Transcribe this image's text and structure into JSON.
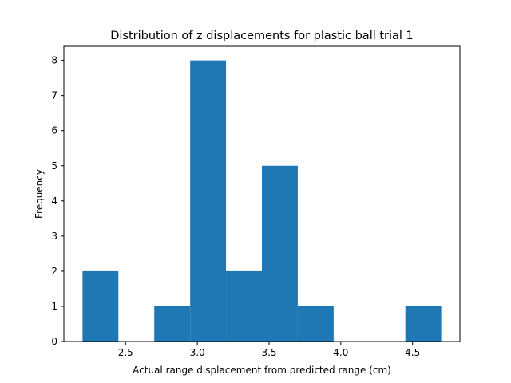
{
  "chart_data": {
    "type": "bar",
    "title": "Distribution of z displacements for plastic ball trial 1",
    "xlabel": "Actual range displacement from predicted range (cm)",
    "ylabel": "Frequency",
    "bins": [
      {
        "start": 2.2,
        "end": 2.45,
        "count": 2
      },
      {
        "start": 2.45,
        "end": 2.7,
        "count": 0
      },
      {
        "start": 2.7,
        "end": 2.95,
        "count": 1
      },
      {
        "start": 2.95,
        "end": 3.2,
        "count": 8
      },
      {
        "start": 3.2,
        "end": 3.45,
        "count": 2
      },
      {
        "start": 3.45,
        "end": 3.7,
        "count": 5
      },
      {
        "start": 3.7,
        "end": 3.95,
        "count": 1
      },
      {
        "start": 3.95,
        "end": 4.2,
        "count": 0
      },
      {
        "start": 4.2,
        "end": 4.45,
        "count": 0
      },
      {
        "start": 4.45,
        "end": 4.7,
        "count": 1
      }
    ],
    "xlim": [
      2.07,
      4.83
    ],
    "ylim": [
      0,
      8.4
    ],
    "xticks": [
      {
        "value": 2.5,
        "label": "2.5"
      },
      {
        "value": 3.0,
        "label": "3.0"
      },
      {
        "value": 3.5,
        "label": "3.5"
      },
      {
        "value": 4.0,
        "label": "4.0"
      },
      {
        "value": 4.5,
        "label": "4.5"
      }
    ],
    "yticks": [
      {
        "value": 0,
        "label": "0"
      },
      {
        "value": 1,
        "label": "1"
      },
      {
        "value": 2,
        "label": "2"
      },
      {
        "value": 3,
        "label": "3"
      },
      {
        "value": 4,
        "label": "4"
      },
      {
        "value": 5,
        "label": "5"
      },
      {
        "value": 6,
        "label": "6"
      },
      {
        "value": 7,
        "label": "7"
      },
      {
        "value": 8,
        "label": "8"
      }
    ],
    "bar_color": "#1f77b4",
    "grid": false,
    "legend": "none"
  }
}
